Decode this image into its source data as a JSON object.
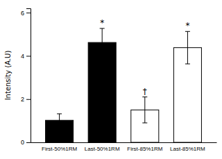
{
  "chart_data": {
    "type": "bar",
    "categories": [
      "First-50%1RM",
      "Last-50%1RM",
      "First-85%1RM",
      "Last-85%1RM"
    ],
    "values": [
      1.02,
      4.62,
      1.5,
      4.38
    ],
    "errors": [
      0.3,
      0.65,
      0.6,
      0.75
    ],
    "colors": [
      "black",
      "black",
      "white",
      "white"
    ],
    "annotations": [
      null,
      "*",
      "†",
      "*"
    ],
    "ylabel": "Intensity (A.U)",
    "ylim": [
      0,
      6.2
    ],
    "yticks": [
      0,
      2,
      4,
      6
    ],
    "grid": false
  }
}
